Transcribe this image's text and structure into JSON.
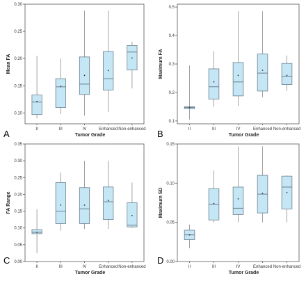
{
  "chart_data": [
    {
      "panel": "A",
      "type": "boxplot",
      "xlabel": "Tumor Grade",
      "ylabel": "Mean FA",
      "categories": [
        "II",
        "III",
        "IV",
        "Enhanced",
        "Non-enhanced"
      ],
      "ylim": [
        0.08,
        0.3
      ],
      "yticks": [
        "0.10",
        "0.15",
        "0.20",
        "0.25",
        "0.30"
      ],
      "boxes": [
        {
          "category": "II",
          "min": 0.09,
          "q1": 0.097,
          "median": 0.12,
          "q3": 0.133,
          "max": 0.205,
          "mean": 0.121
        },
        {
          "category": "III",
          "min": 0.098,
          "q1": 0.11,
          "median": 0.148,
          "q3": 0.163,
          "max": 0.2,
          "mean": 0.149
        },
        {
          "category": "IV",
          "min": 0.095,
          "q1": 0.134,
          "median": 0.153,
          "q3": 0.203,
          "max": 0.288,
          "mean": 0.169
        },
        {
          "category": "Enhanced",
          "min": 0.102,
          "q1": 0.142,
          "median": 0.163,
          "q3": 0.213,
          "max": 0.288,
          "mean": 0.178
        },
        {
          "category": "Non-enhanced",
          "min": 0.145,
          "q1": 0.179,
          "median": 0.212,
          "q3": 0.224,
          "max": 0.231,
          "mean": 0.201
        }
      ]
    },
    {
      "panel": "B",
      "type": "boxplot",
      "xlabel": "Tumor Grade",
      "ylabel": "Maximum FA",
      "categories": [
        "II",
        "III",
        "IV",
        "Enhanced",
        "Non-enhanced"
      ],
      "ylim": [
        0.09,
        0.51
      ],
      "yticks": [
        "0.1",
        "0.2",
        "0.3",
        "0.4",
        "0.5"
      ],
      "boxes": [
        {
          "category": "II",
          "min": 0.105,
          "q1": 0.143,
          "median": 0.147,
          "q3": 0.15,
          "max": 0.295,
          "mean": 0.147
        },
        {
          "category": "III",
          "min": 0.15,
          "q1": 0.177,
          "median": 0.22,
          "q3": 0.283,
          "max": 0.345,
          "mean": 0.237
        },
        {
          "category": "IV",
          "min": 0.152,
          "q1": 0.188,
          "median": 0.237,
          "q3": 0.305,
          "max": 0.485,
          "mean": 0.26
        },
        {
          "category": "Enhanced",
          "min": 0.183,
          "q1": 0.205,
          "median": 0.268,
          "q3": 0.335,
          "max": 0.485,
          "mean": 0.278
        },
        {
          "category": "Non-enhanced",
          "min": 0.205,
          "q1": 0.228,
          "median": 0.257,
          "q3": 0.302,
          "max": 0.33,
          "mean": 0.26
        }
      ]
    },
    {
      "panel": "C",
      "type": "boxplot",
      "xlabel": "Tumor Grade",
      "ylabel": "FA Range",
      "categories": [
        "II",
        "III",
        "IV",
        "Enhanced",
        "Non-enhanced"
      ],
      "ylim": [
        0.0,
        0.35
      ],
      "yticks": [
        "0.00",
        "0.05",
        "0.10",
        "0.15",
        "0.20",
        "0.25",
        "0.30",
        "0.35"
      ],
      "boxes": [
        {
          "category": "II",
          "min": 0.025,
          "q1": 0.083,
          "median": 0.087,
          "q3": 0.095,
          "max": 0.155,
          "mean": 0.087
        },
        {
          "category": "III",
          "min": 0.092,
          "q1": 0.113,
          "median": 0.15,
          "q3": 0.235,
          "max": 0.265,
          "mean": 0.168
        },
        {
          "category": "IV",
          "min": 0.097,
          "q1": 0.113,
          "median": 0.157,
          "q3": 0.22,
          "max": 0.3,
          "mean": 0.168
        },
        {
          "category": "Enhanced",
          "min": 0.097,
          "q1": 0.125,
          "median": 0.178,
          "q3": 0.222,
          "max": 0.3,
          "mean": 0.182
        },
        {
          "category": "Non-enhanced",
          "min": 0.1,
          "q1": 0.103,
          "median": 0.108,
          "q3": 0.175,
          "max": 0.235,
          "mean": 0.137
        }
      ]
    },
    {
      "panel": "D",
      "type": "boxplot",
      "xlabel": "Tumor Grade",
      "ylabel": "Maximum SD",
      "categories": [
        "II",
        "III",
        "IV",
        "Enhanced",
        "Non-enhanced"
      ],
      "ylim": [
        0.0,
        0.15
      ],
      "yticks": [
        "0.00",
        "0.05",
        "0.10",
        "0.15"
      ],
      "boxes": [
        {
          "category": "II",
          "min": 0.017,
          "q1": 0.028,
          "median": 0.034,
          "q3": 0.04,
          "max": 0.047,
          "mean": 0.034
        },
        {
          "category": "III",
          "min": 0.05,
          "q1": 0.053,
          "median": 0.073,
          "q3": 0.093,
          "max": 0.116,
          "mean": 0.074
        },
        {
          "category": "IV",
          "min": 0.05,
          "q1": 0.06,
          "median": 0.068,
          "q3": 0.095,
          "max": 0.147,
          "mean": 0.08
        },
        {
          "category": "Enhanced",
          "min": 0.05,
          "q1": 0.062,
          "median": 0.086,
          "q3": 0.11,
          "max": 0.147,
          "mean": 0.087
        },
        {
          "category": "Non-enhanced",
          "min": 0.05,
          "q1": 0.067,
          "median": 0.095,
          "q3": 0.109,
          "max": 0.11,
          "mean": 0.088
        }
      ]
    }
  ],
  "style": {
    "box_fill": "#c5e6f5",
    "box_stroke": "#6b7f8e",
    "whisker_color": "#8a8a8a",
    "axis_color": "#555555"
  }
}
